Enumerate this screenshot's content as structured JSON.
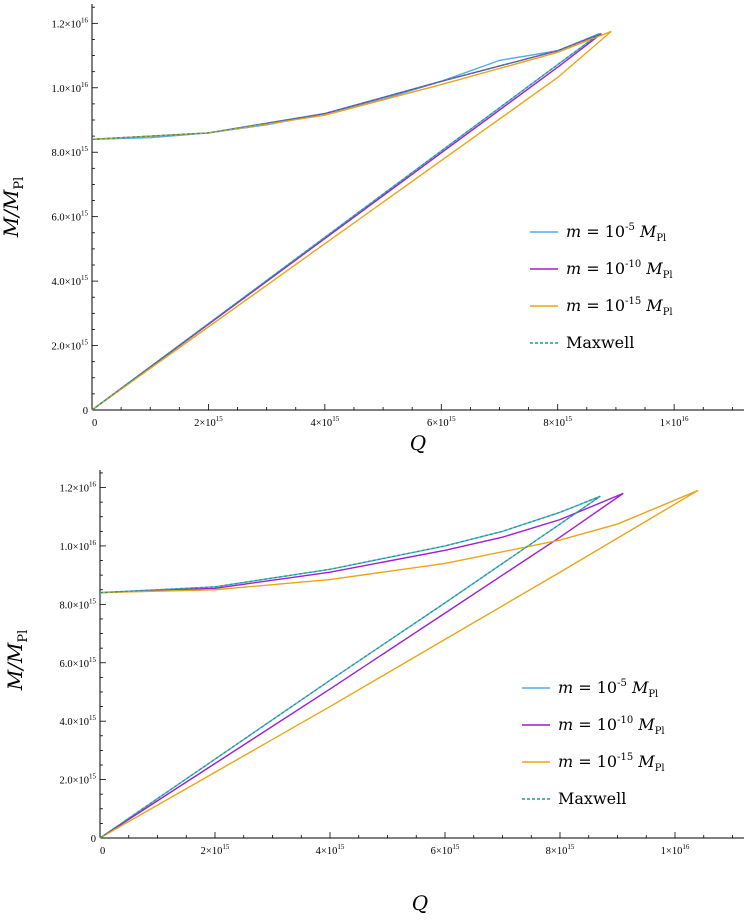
{
  "colors": {
    "series1": "#5aa9e6",
    "series2": "#9f1fd1",
    "series3": "#eaa516",
    "maxwell": "#1f9e89"
  },
  "chart_data": [
    {
      "type": "line",
      "xlabel": "Q",
      "ylabel": "M/M_Pl",
      "xlim": [
        0,
        1.12e+16
      ],
      "ylim": [
        0,
        1.26e+16
      ],
      "grid": false,
      "legend_position": "right",
      "x_ticks": [
        "0",
        "2×10^15",
        "4×10^15",
        "6×10^15",
        "8×10^15",
        "1×10^16"
      ],
      "y_ticks": [
        "0",
        "2.0×10^15",
        "4.0×10^15",
        "6.0×10^15",
        "8.0×10^15",
        "1.0×10^16",
        "1.2×10^16"
      ],
      "series": [
        {
          "name": "m = 10^-5 M_Pl",
          "color": "#5aa9e6",
          "dashed": false,
          "lower": {
            "x": [
              0,
              1000000000000000.0,
              2000000000000000.0,
              3000000000000000.0,
              4000000000000000.0,
              5000000000000000.0,
              6000000000000000.0,
              7000000000000000.0,
              8000000000000000.0,
              8720000000000000.0
            ],
            "y": [
              0,
              1340000000000000.0,
              2680000000000000.0,
              4020000000000000.0,
              5360000000000000.0,
              6700000000000000.0,
              8040000000000000.0,
              9380000000000000.0,
              1.072e+16,
              1.168e+16
            ]
          },
          "upper": {
            "x": [
              0,
              1000000000000000.0,
              2000000000000000.0,
              3000000000000000.0,
              4000000000000000.0,
              5000000000000000.0,
              6000000000000000.0,
              7000000000000000.0,
              8000000000000000.0,
              8720000000000000.0
            ],
            "y": [
              8400000000000000.0,
              8450000000000000.0,
              8600000000000000.0,
              8850000000000000.0,
              9200000000000000.0,
              9650000000000000.0,
              1.02e+16,
              1.085e+16,
              1.115e+16,
              1.168e+16
            ]
          }
        },
        {
          "name": "m = 10^-10 M_Pl",
          "color": "#9f1fd1",
          "dashed": false,
          "lower": {
            "x": [
              0,
              2000000000000000.0,
              4000000000000000.0,
              6000000000000000.0,
              8000000000000000.0,
              8750000000000000.0
            ],
            "y": [
              0,
              2660000000000000.0,
              5320000000000000.0,
              7980000000000000.0,
              1.064e+16,
              1.168e+16
            ]
          },
          "upper": {
            "x": [
              0,
              2000000000000000.0,
              4000000000000000.0,
              6000000000000000.0,
              8000000000000000.0,
              8750000000000000.0
            ],
            "y": [
              8400000000000000.0,
              8600000000000000.0,
              9200000000000000.0,
              1.02e+16,
              1.115e+16,
              1.168e+16
            ]
          }
        },
        {
          "name": "m = 10^-15 M_Pl",
          "color": "#eaa516",
          "dashed": false,
          "lower": {
            "x": [
              0,
              2000000000000000.0,
              4000000000000000.0,
              6000000000000000.0,
              8000000000000000.0,
              8920000000000000.0
            ],
            "y": [
              0,
              2580000000000000.0,
              5160000000000000.0,
              7740000000000000.0,
              1.032e+16,
              1.175e+16
            ]
          },
          "upper": {
            "x": [
              0,
              2000000000000000.0,
              4000000000000000.0,
              6000000000000000.0,
              8000000000000000.0,
              8920000000000000.0
            ],
            "y": [
              8400000000000000.0,
              8600000000000000.0,
              9150000000000000.0,
              1.01e+16,
              1.11e+16,
              1.175e+16
            ]
          }
        },
        {
          "name": "Maxwell",
          "color": "#1f9e89",
          "dashed": true,
          "lower": {
            "x": [
              0,
              2000000000000000.0,
              4000000000000000.0,
              6000000000000000.0,
              8000000000000000.0,
              8720000000000000.0
            ],
            "y": [
              0,
              2680000000000000.0,
              5360000000000000.0,
              8040000000000000.0,
              1.072e+16,
              1.168e+16
            ]
          },
          "upper": {
            "x": [
              0,
              2000000000000000.0,
              4000000000000000.0,
              6000000000000000.0,
              8000000000000000.0,
              8720000000000000.0
            ],
            "y": [
              8400000000000000.0,
              8600000000000000.0,
              9200000000000000.0,
              1.02e+16,
              1.115e+16,
              1.168e+16
            ]
          }
        }
      ]
    },
    {
      "type": "line",
      "xlabel": "Q",
      "ylabel": "M/M_Pl",
      "xlim": [
        0,
        1.12e+16
      ],
      "ylim": [
        0,
        1.26e+16
      ],
      "grid": false,
      "legend_position": "right",
      "x_ticks": [
        "0",
        "2×10^15",
        "4×10^15",
        "6×10^15",
        "8×10^15",
        "1×10^16"
      ],
      "y_ticks": [
        "0",
        "2.0×10^15",
        "4.0×10^15",
        "6.0×10^15",
        "8.0×10^15",
        "1.0×10^16",
        "1.2×10^16"
      ],
      "series": [
        {
          "name": "m = 10^-5 M_Pl",
          "color": "#5aa9e6",
          "dashed": false,
          "lower": {
            "x": [
              0,
              2000000000000000.0,
              4000000000000000.0,
              6000000000000000.0,
              8000000000000000.0,
              8700000000000000.0
            ],
            "y": [
              0,
              2700000000000000.0,
              5400000000000000.0,
              8050000000000000.0,
              1.075e+16,
              1.17e+16
            ]
          },
          "upper": {
            "x": [
              0,
              2000000000000000.0,
              4000000000000000.0,
              6000000000000000.0,
              7000000000000000.0,
              8000000000000000.0,
              8700000000000000.0
            ],
            "y": [
              8400000000000000.0,
              8600000000000000.0,
              9200000000000000.0,
              1e+16,
              1.05e+16,
              1.115e+16,
              1.17e+16
            ]
          }
        },
        {
          "name": "m = 10^-10 M_Pl",
          "color": "#9f1fd1",
          "dashed": false,
          "lower": {
            "x": [
              0,
              2000000000000000.0,
              4000000000000000.0,
              6000000000000000.0,
              8000000000000000.0,
              9100000000000000.0
            ],
            "y": [
              0,
              2550000000000000.0,
              5100000000000000.0,
              7700000000000000.0,
              1.03e+16,
              1.18e+16
            ]
          },
          "upper": {
            "x": [
              0,
              2000000000000000.0,
              4000000000000000.0,
              6000000000000000.0,
              7000000000000000.0,
              8000000000000000.0,
              9100000000000000.0
            ],
            "y": [
              8400000000000000.0,
              8550000000000000.0,
              9100000000000000.0,
              9850000000000000.0,
              1.03e+16,
              1.09e+16,
              1.18e+16
            ]
          }
        },
        {
          "name": "m = 10^-15 M_Pl",
          "color": "#eaa516",
          "dashed": false,
          "lower": {
            "x": [
              0,
              2000000000000000.0,
              4000000000000000.0,
              6000000000000000.0,
              8000000000000000.0,
              1.04e+16
            ],
            "y": [
              0,
              2250000000000000.0,
              4500000000000000.0,
              6800000000000000.0,
              9100000000000000.0,
              1.19e+16
            ]
          },
          "upper": {
            "x": [
              0,
              2000000000000000.0,
              4000000000000000.0,
              6000000000000000.0,
              8000000000000000.0,
              9000000000000000.0,
              1.04e+16
            ],
            "y": [
              8400000000000000.0,
              8500000000000000.0,
              8850000000000000.0,
              9400000000000000.0,
              1.02e+16,
              1.075e+16,
              1.19e+16
            ]
          }
        },
        {
          "name": "Maxwell",
          "color": "#1f9e89",
          "dashed": true,
          "lower": {
            "x": [
              0,
              2000000000000000.0,
              4000000000000000.0,
              6000000000000000.0,
              8000000000000000.0,
              8700000000000000.0
            ],
            "y": [
              0,
              2700000000000000.0,
              5400000000000000.0,
              8050000000000000.0,
              1.075e+16,
              1.17e+16
            ]
          },
          "upper": {
            "x": [
              0,
              2000000000000000.0,
              4000000000000000.0,
              6000000000000000.0,
              7000000000000000.0,
              8000000000000000.0,
              8700000000000000.0
            ],
            "y": [
              8400000000000000.0,
              8600000000000000.0,
              9200000000000000.0,
              1e+16,
              1.05e+16,
              1.115e+16,
              1.17e+16
            ]
          }
        }
      ]
    }
  ]
}
